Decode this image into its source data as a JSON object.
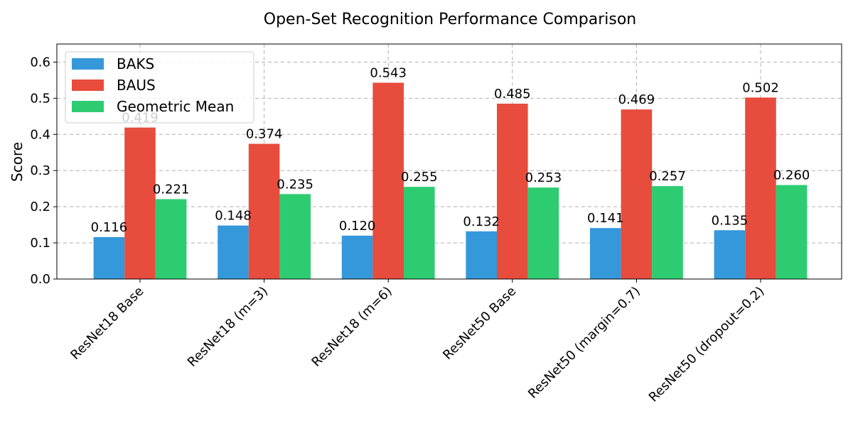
{
  "chart_data": {
    "type": "bar",
    "title": "Open-Set Recognition Performance Comparison",
    "xlabel": "",
    "ylabel": "Score",
    "ylim": [
      0,
      0.65
    ],
    "yticks": [
      0.0,
      0.1,
      0.2,
      0.3,
      0.4,
      0.5,
      0.6
    ],
    "ytick_labels": [
      "0.0",
      "0.1",
      "0.2",
      "0.3",
      "0.4",
      "0.5",
      "0.6"
    ],
    "grid": true,
    "legend_position": "top-left",
    "categories": [
      "ResNet18 Base",
      "ResNet18 (m=3)",
      "ResNet18 (m=6)",
      "ResNet50 Base",
      "ResNet50 (margin=0.7)",
      "ResNet50 (dropout=0.2)"
    ],
    "series": [
      {
        "name": "BAKS",
        "color": "#3498db",
        "values": [
          0.116,
          0.148,
          0.12,
          0.132,
          0.141,
          0.135
        ],
        "labels": [
          "0.116",
          "0.148",
          "0.120",
          "0.132",
          "0.141",
          "0.135"
        ]
      },
      {
        "name": "BAUS",
        "color": "#e74c3c",
        "values": [
          0.419,
          0.374,
          0.543,
          0.485,
          0.469,
          0.502
        ],
        "labels": [
          "0.419",
          "0.374",
          "0.543",
          "0.485",
          "0.469",
          "0.502"
        ]
      },
      {
        "name": "Geometric Mean",
        "color": "#2ecc71",
        "values": [
          0.221,
          0.235,
          0.255,
          0.253,
          0.257,
          0.26
        ],
        "labels": [
          "0.221",
          "0.235",
          "0.255",
          "0.253",
          "0.257",
          "0.260"
        ]
      }
    ]
  }
}
